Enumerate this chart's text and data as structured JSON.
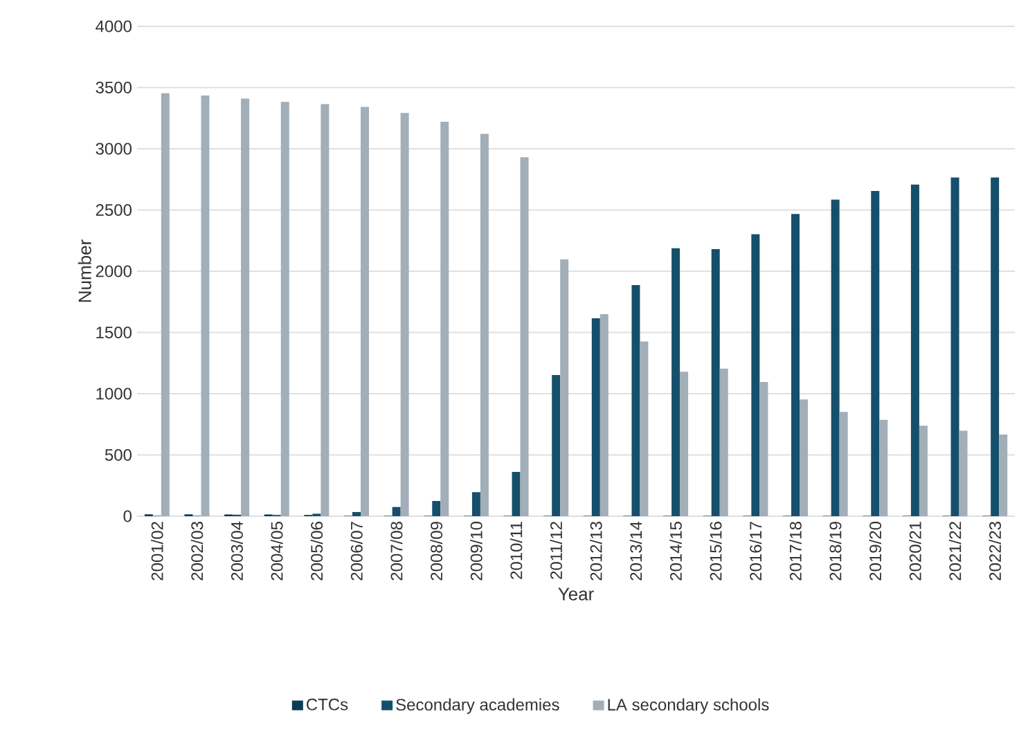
{
  "chart_data": {
    "type": "bar",
    "xlabel": "Year",
    "ylabel": "Number",
    "categories": [
      "2001/02",
      "2002/03",
      "2003/04",
      "2004/05",
      "2005/06",
      "2006/07",
      "2007/08",
      "2008/09",
      "2009/10",
      "2010/11",
      "2011/12",
      "2012/13",
      "2013/14",
      "2014/15",
      "2015/16",
      "2016/17",
      "2017/18",
      "2018/19",
      "2019/20",
      "2020/21",
      "2021/22",
      "2022/23"
    ],
    "series": [
      {
        "name": "CTCs",
        "color": "#0d3a55",
        "values": [
          15,
          15,
          14,
          14,
          10,
          3,
          3,
          3,
          3,
          3,
          3,
          3,
          3,
          3,
          3,
          3,
          3,
          3,
          3,
          3,
          3,
          3
        ]
      },
      {
        "name": "Secondary  academies",
        "color": "#154f6b",
        "values": [
          3,
          3,
          12,
          10,
          20,
          34,
          75,
          124,
          196,
          362,
          1153,
          1616,
          1887,
          2188,
          2181,
          2302,
          2467,
          2584,
          2655,
          2708,
          2765,
          2765
        ]
      },
      {
        "name": "LA secondary schools",
        "color": "#a2aeb8",
        "values": [
          3454,
          3435,
          3409,
          3382,
          3364,
          3341,
          3292,
          3220,
          3122,
          2930,
          2098,
          1650,
          1427,
          1179,
          1205,
          1096,
          953,
          851,
          787,
          738,
          697,
          667
        ]
      }
    ],
    "ylim": [
      0,
      4000
    ],
    "yticks": [
      0,
      500,
      1000,
      1500,
      2000,
      2500,
      3000,
      3500,
      4000
    ],
    "grid": "y",
    "legend": "bottom"
  }
}
